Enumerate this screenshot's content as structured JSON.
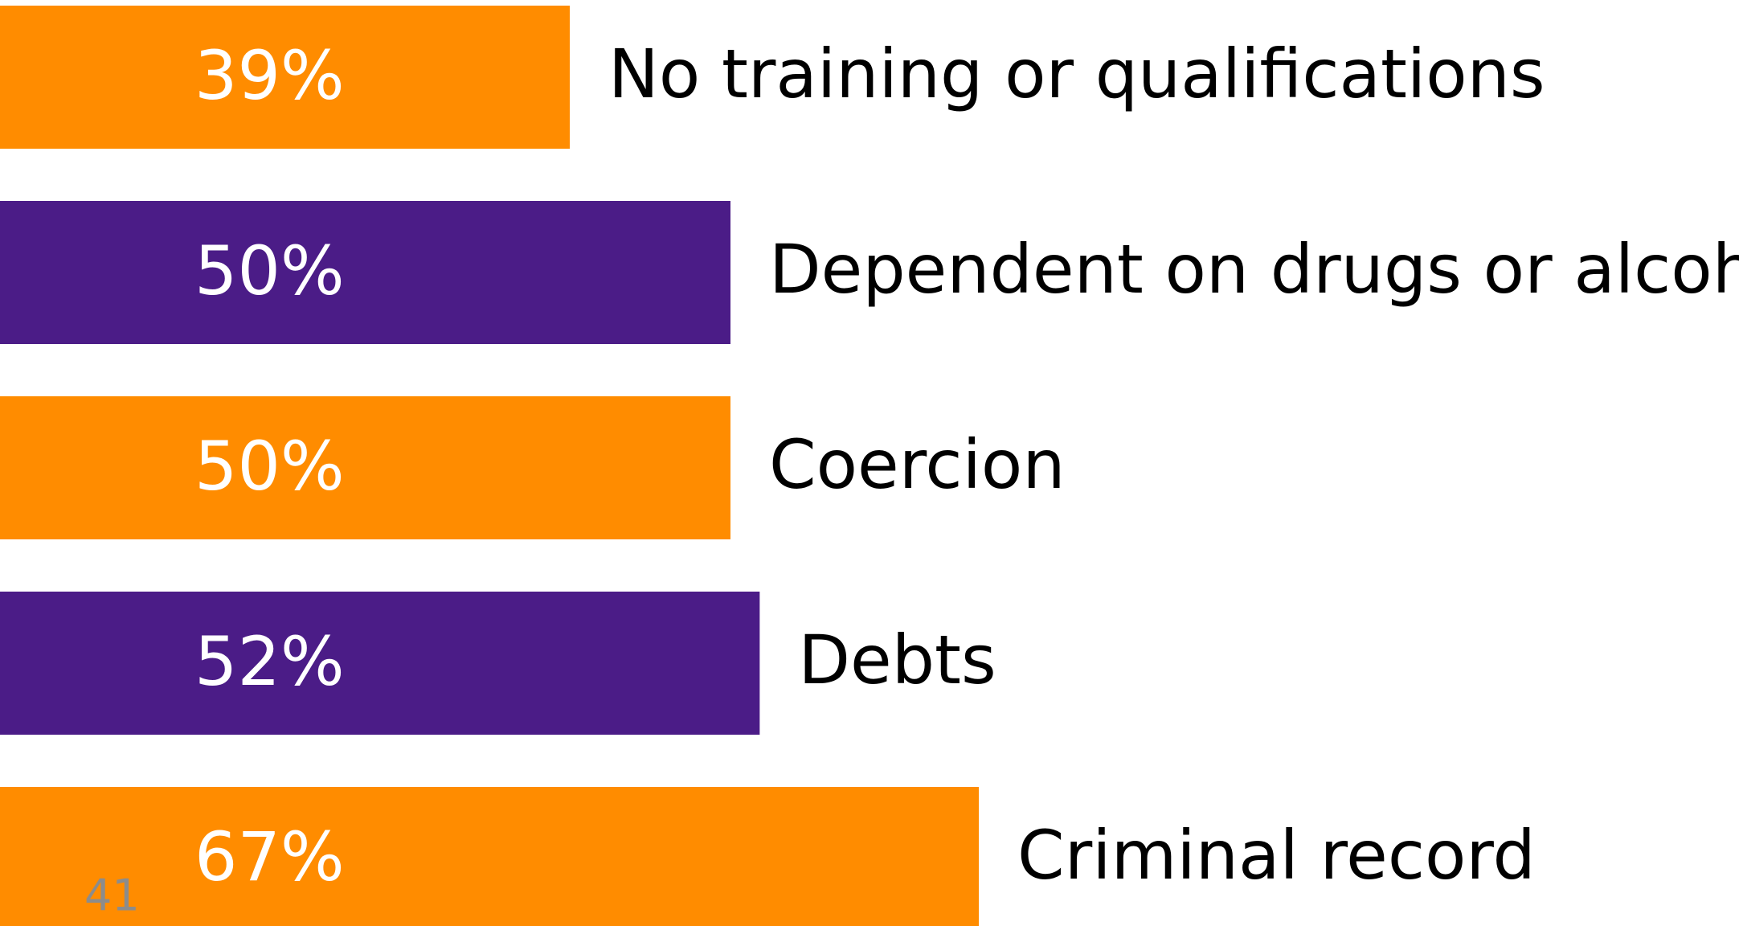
{
  "chart_data": {
    "type": "bar",
    "orientation": "horizontal",
    "categories": [
      "No training or qualifications",
      "Dependent on drugs or alcohol",
      "Coercion",
      "Debts",
      "Criminal record"
    ],
    "values": [
      39,
      50,
      50,
      52,
      67
    ],
    "value_labels": [
      "39%",
      "50%",
      "50%",
      "52%",
      "67%"
    ],
    "colors": [
      "#ff8c00",
      "#4b1c87",
      "#ff8c00",
      "#4b1c87",
      "#ff8c00"
    ]
  },
  "page_number": "41"
}
